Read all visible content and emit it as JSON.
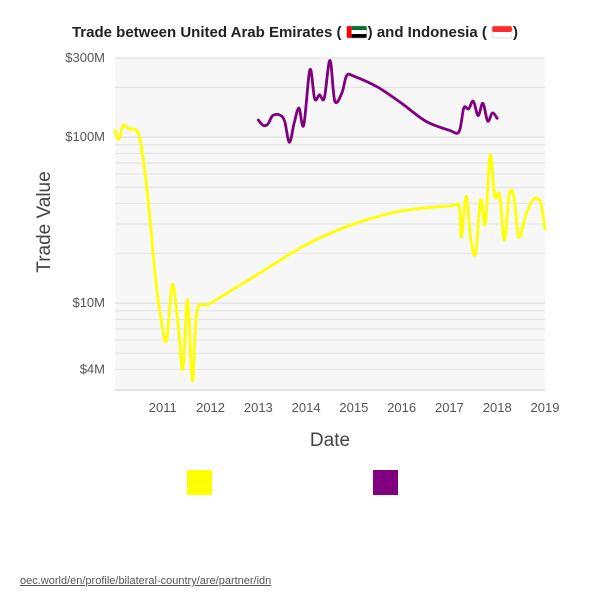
{
  "page": {
    "title_prefix": "Trade between United Arab Emirates (",
    "title_mid": ") and Indonesia (",
    "title_suffix": ")",
    "flag_uae": "uae-flag",
    "flag_idn": "indonesia-flag",
    "source_link": "oec.world/en/profile/bilateral-country/are/partner/idn"
  },
  "colors": {
    "series_exports": "#ffff00",
    "series_imports": "#800080",
    "plot_background": "#f7f7f7",
    "grid": "#dddddd"
  },
  "chart_data": {
    "type": "line",
    "title": "Trade between United Arab Emirates () and Indonesia ()",
    "xlabel": "Date",
    "ylabel": "Trade Value",
    "y_scale": "log",
    "xlim": [
      2010.0,
      2019.0
    ],
    "ylim": [
      3000000,
      300000000
    ],
    "x_ticks": [
      2011,
      2012,
      2013,
      2014,
      2015,
      2016,
      2017,
      2018,
      2019
    ],
    "y_ticks": [
      {
        "value": 4000000,
        "label": "$4M"
      },
      {
        "value": 10000000,
        "label": "$10M"
      },
      {
        "value": 100000000,
        "label": "$100M"
      },
      {
        "value": 300000000,
        "label": "$300M"
      }
    ],
    "grid": true,
    "legend": "bottom",
    "series": [
      {
        "color": "#ffff00",
        "points": [
          [
            2010.0,
            110000000
          ],
          [
            2010.08,
            97000000
          ],
          [
            2010.17,
            118000000
          ],
          [
            2010.3,
            112000000
          ],
          [
            2010.45,
            110000000
          ],
          [
            2010.55,
            88000000
          ],
          [
            2010.7,
            40000000
          ],
          [
            2010.85,
            14000000
          ],
          [
            2010.98,
            7500000
          ],
          [
            2011.08,
            6000000
          ],
          [
            2011.2,
            13000000
          ],
          [
            2011.32,
            7500000
          ],
          [
            2011.42,
            4000000
          ],
          [
            2011.52,
            10500000
          ],
          [
            2011.62,
            3400000
          ],
          [
            2011.72,
            9000000
          ],
          [
            2012.0,
            10000000
          ],
          [
            2013.0,
            15000000
          ],
          [
            2014.0,
            22500000
          ],
          [
            2015.0,
            30000000
          ],
          [
            2016.0,
            36000000
          ],
          [
            2017.0,
            38500000
          ],
          [
            2017.2,
            38500000
          ],
          [
            2017.25,
            25000000
          ],
          [
            2017.35,
            44000000
          ],
          [
            2017.45,
            24000000
          ],
          [
            2017.55,
            20000000
          ],
          [
            2017.65,
            42000000
          ],
          [
            2017.75,
            30000000
          ],
          [
            2017.85,
            78000000
          ],
          [
            2017.95,
            44000000
          ],
          [
            2018.05,
            45000000
          ],
          [
            2018.15,
            24000000
          ],
          [
            2018.25,
            45000000
          ],
          [
            2018.35,
            44000000
          ],
          [
            2018.45,
            25000000
          ],
          [
            2018.6,
            34000000
          ],
          [
            2018.75,
            42000000
          ],
          [
            2018.9,
            41000000
          ],
          [
            2019.0,
            28000000
          ]
        ]
      },
      {
        "color": "#800080",
        "points": [
          [
            2013.0,
            127000000
          ],
          [
            2013.1,
            118000000
          ],
          [
            2013.2,
            120000000
          ],
          [
            2013.3,
            135000000
          ],
          [
            2013.45,
            136000000
          ],
          [
            2013.55,
            125000000
          ],
          [
            2013.65,
            93000000
          ],
          [
            2013.75,
            122000000
          ],
          [
            2013.85,
            150000000
          ],
          [
            2013.95,
            118000000
          ],
          [
            2014.08,
            255000000
          ],
          [
            2014.18,
            170000000
          ],
          [
            2014.28,
            180000000
          ],
          [
            2014.38,
            172000000
          ],
          [
            2014.5,
            290000000
          ],
          [
            2014.6,
            165000000
          ],
          [
            2014.75,
            185000000
          ],
          [
            2014.85,
            235000000
          ],
          [
            2015.0,
            233000000
          ],
          [
            2015.5,
            200000000
          ],
          [
            2016.0,
            160000000
          ],
          [
            2016.5,
            125000000
          ],
          [
            2017.0,
            110000000
          ],
          [
            2017.2,
            108000000
          ],
          [
            2017.3,
            150000000
          ],
          [
            2017.4,
            148000000
          ],
          [
            2017.5,
            165000000
          ],
          [
            2017.6,
            135000000
          ],
          [
            2017.7,
            160000000
          ],
          [
            2017.8,
            125000000
          ],
          [
            2017.9,
            140000000
          ],
          [
            2018.0,
            130000000
          ]
        ]
      }
    ]
  }
}
